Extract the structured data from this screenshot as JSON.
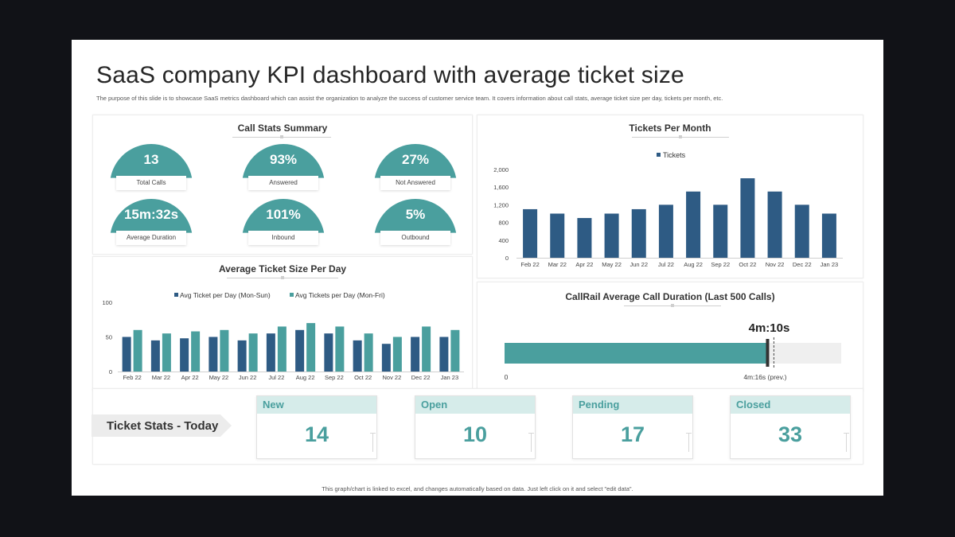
{
  "title": "SaaS company KPI dashboard with average ticket size",
  "subtitle": "The purpose of this slide is to showcase SaaS metrics dashboard which can assist the organization to analyze the success of customer service team. It covers information about call stats, average ticket size per day, tickets per month, etc.",
  "call_stats": {
    "title": "Call Stats Summary",
    "items": [
      {
        "value": "13",
        "label": "Total Calls"
      },
      {
        "value": "93%",
        "label": "Answered"
      },
      {
        "value": "27%",
        "label": "Not Answered"
      },
      {
        "value": "15m:32s",
        "label": "Average Duration"
      },
      {
        "value": "101%",
        "label": "Inbound"
      },
      {
        "value": "5%",
        "label": "Outbound"
      }
    ]
  },
  "tickets_per_month": {
    "title": "Tickets Per Month",
    "legend": "Tickets",
    "color": "#2e5b84"
  },
  "avg_ticket": {
    "title": "Average Ticket Size Per Day",
    "colors": [
      "#2e5b84",
      "#4a9f9e"
    ]
  },
  "call_duration": {
    "title": "CallRail Average Call Duration (Last 500 Calls)",
    "current": "4m:10s",
    "previous": "4m:16s (prev.)",
    "axis_start": "0",
    "current_seconds": 250,
    "previous_seconds": 256,
    "bar_color": "#4a9f9e"
  },
  "ticket_stats": {
    "label": "Ticket Stats - Today",
    "cards": [
      {
        "label": "New",
        "value": "14"
      },
      {
        "label": "Open",
        "value": "10"
      },
      {
        "label": "Pending",
        "value": "17"
      },
      {
        "label": "Closed",
        "value": "33"
      }
    ]
  },
  "footer": "This graph/chart is linked to excel, and changes automatically based on data. Just left click on it and select \"edit data\".",
  "chart_data": [
    {
      "type": "bar",
      "title": "Tickets Per Month",
      "categories": [
        "Feb 22",
        "Mar 22",
        "Apr 22",
        "May 22",
        "Jun 22",
        "Jul 22",
        "Aug 22",
        "Sep 22",
        "Oct 22",
        "Nov 22",
        "Dec 22",
        "Jan 23"
      ],
      "series": [
        {
          "name": "Tickets",
          "values": [
            1100,
            1000,
            900,
            1000,
            1100,
            1200,
            1500,
            1200,
            1800,
            1500,
            1200,
            1000
          ]
        }
      ],
      "ylim": [
        0,
        2000
      ],
      "yticks": [
        "0",
        "400",
        "800",
        "1,200",
        "1,600",
        "2,000"
      ],
      "grid": false,
      "legend": "top"
    },
    {
      "type": "bar",
      "title": "Average Ticket Size Per Day",
      "categories": [
        "Feb 22",
        "Mar 22",
        "Apr 22",
        "May 22",
        "Jun 22",
        "Jul 22",
        "Aug 22",
        "Sep 22",
        "Oct 22",
        "Nov 22",
        "Dec 22",
        "Jan 23"
      ],
      "series": [
        {
          "name": "Avg Ticket per Day (Mon-Sun)",
          "values": [
            50,
            45,
            48,
            50,
            45,
            55,
            60,
            55,
            45,
            40,
            50,
            50
          ]
        },
        {
          "name": "Avg Tickets per Day (Mon-Fri)",
          "values": [
            60,
            55,
            58,
            60,
            55,
            65,
            70,
            65,
            55,
            50,
            65,
            60
          ]
        }
      ],
      "ylim": [
        0,
        100
      ],
      "yticks": [
        "0",
        "50",
        "100"
      ],
      "grid": false,
      "legend": "top"
    }
  ]
}
